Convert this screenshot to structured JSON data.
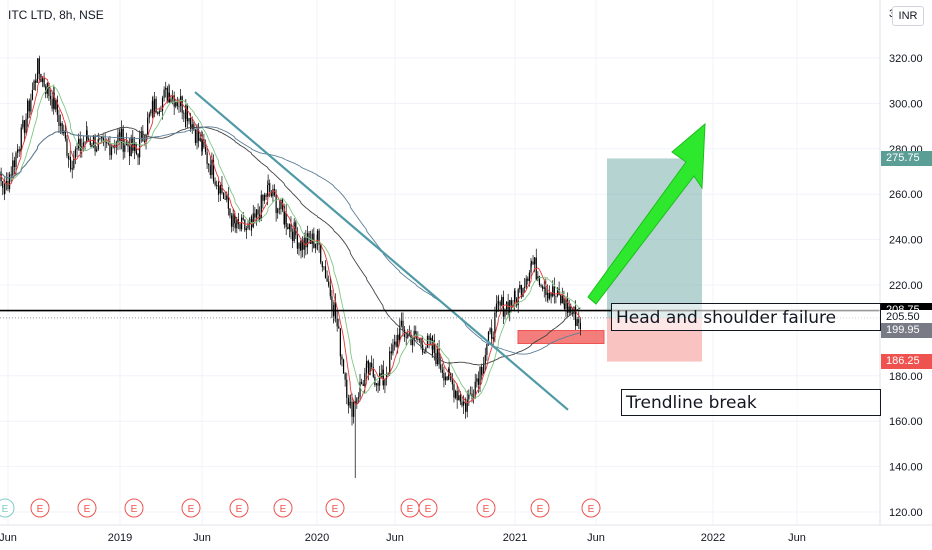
{
  "header": {
    "symbol_line": "ITC LTD, 8h, NSE",
    "currency": "INR",
    "currency_partial": "3"
  },
  "price_axis": {
    "labels": [
      "320.00",
      "300.00",
      "280.00",
      "260.00",
      "240.00",
      "220.00",
      "180.00",
      "160.00",
      "140.00",
      "120.00"
    ]
  },
  "time_axis": {
    "labels": [
      "Jun",
      "2019",
      "Jun",
      "2020",
      "Jun",
      "2021",
      "Jun",
      "2022",
      "Jun"
    ]
  },
  "price_tags": [
    {
      "label": "275.75",
      "bg": "#5b9e96",
      "color": "#ffffff"
    },
    {
      "label": "208.75",
      "bg": "#000000",
      "color": "#ffffff"
    },
    {
      "label": "205.50",
      "bg": "#ffffff",
      "color": "#131722"
    },
    {
      "label": "199.95",
      "bg": "#787b86",
      "color": "#ffffff"
    },
    {
      "label": "186.25",
      "bg": "#ef5350",
      "color": "#ffffff"
    }
  ],
  "annotations": {
    "head_shoulder": "Head and shoulder failure",
    "trendline": "Trendline break"
  },
  "earnings_marker": "E",
  "chart_data": {
    "type": "candlestick",
    "symbol": "ITC LTD",
    "interval": "8h",
    "exchange": "NSE",
    "ylim": [
      115,
      335
    ],
    "x_ticks": [
      "Jun",
      "2019",
      "Jun",
      "2020",
      "Jun",
      "2021",
      "Jun",
      "2022",
      "Jun"
    ],
    "price_path": [
      [
        "2018-05",
        275
      ],
      [
        "2018-06",
        262
      ],
      [
        "2018-07",
        285
      ],
      [
        "2018-08",
        315
      ],
      [
        "2018-09",
        300
      ],
      [
        "2018-10",
        275
      ],
      [
        "2018-11",
        285
      ],
      [
        "2018-12",
        280
      ],
      [
        "2019-01",
        285
      ],
      [
        "2019-02",
        278
      ],
      [
        "2019-03",
        298
      ],
      [
        "2019-04",
        305
      ],
      [
        "2019-05",
        298
      ],
      [
        "2019-06",
        280
      ],
      [
        "2019-07",
        265
      ],
      [
        "2019-08",
        245
      ],
      [
        "2019-09",
        245
      ],
      [
        "2019-10",
        262
      ],
      [
        "2019-11",
        250
      ],
      [
        "2019-12",
        238
      ],
      [
        "2020-01",
        240
      ],
      [
        "2020-02",
        210
      ],
      [
        "2020-03",
        165
      ],
      [
        "2020-04",
        182
      ],
      [
        "2020-05",
        178
      ],
      [
        "2020-06",
        200
      ],
      [
        "2020-07",
        196
      ],
      [
        "2020-08",
        192
      ],
      [
        "2020-09",
        178
      ],
      [
        "2020-10",
        167
      ],
      [
        "2020-11",
        185
      ],
      [
        "2020-12",
        210
      ],
      [
        "2021-01",
        213
      ],
      [
        "2021-02",
        230
      ],
      [
        "2021-03",
        218
      ],
      [
        "2021-04",
        212
      ],
      [
        "2021-05",
        203
      ]
    ],
    "horizontal_level": 208.75,
    "last_price": 205.5,
    "stop_zone": [
      186.25,
      199.95
    ],
    "target": 275.75,
    "annotations": [
      "Head and shoulder failure",
      "Trendline break"
    ]
  }
}
